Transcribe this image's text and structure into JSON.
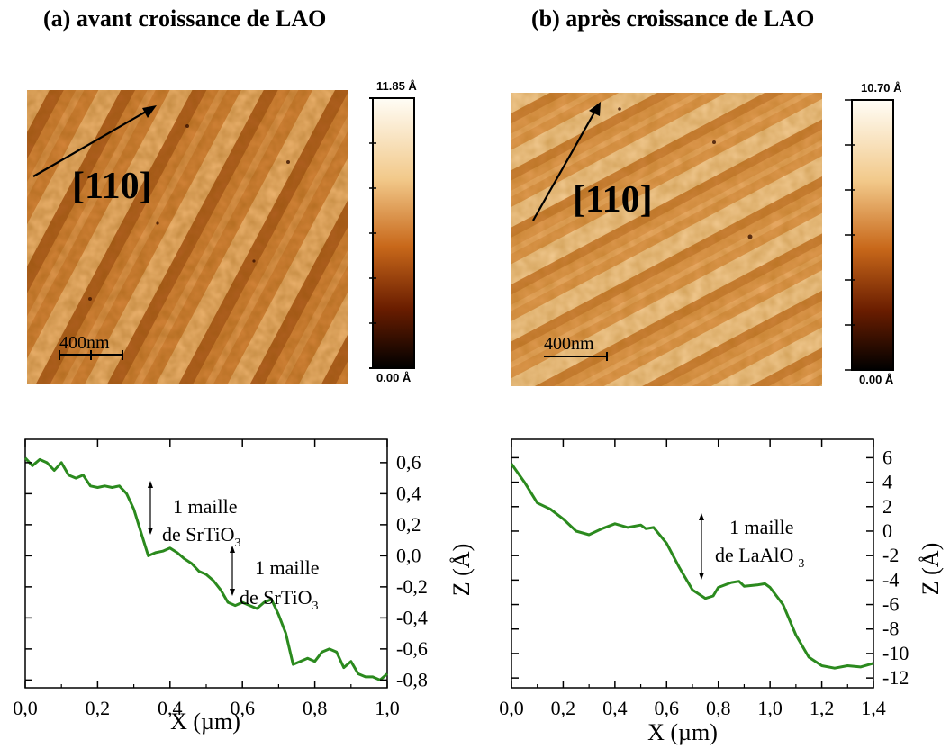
{
  "panels": [
    {
      "title": "(a) avant croissance de LAO",
      "afm": {
        "direction_label": "[110]",
        "scale_bar_label": "400nm",
        "colorbar_max": "11.85 Å",
        "colorbar_min": "0.00 Å"
      },
      "profile_annotations": [
        {
          "line1": "1 maille",
          "line2": "de SrTiO",
          "sub": "3"
        },
        {
          "line1": "1 maille",
          "line2": "de SrTiO",
          "sub": "3"
        }
      ]
    },
    {
      "title": "(b) après croissance de LAO",
      "afm": {
        "direction_label": "[110]",
        "scale_bar_label": "400nm",
        "colorbar_max": "10.70 Å",
        "colorbar_min": "0.00 Å"
      },
      "profile_annotations": [
        {
          "line1": "1 maille",
          "line2": "de LaAlO",
          "sub": "3"
        }
      ]
    }
  ],
  "colors": {
    "profile_line": "#2b8a1e",
    "afm_dark": "#3a0d00",
    "afm_mid": "#c8681a",
    "afm_light": "#fbe7b8",
    "colorbar_top": "#fffdf6",
    "colorbar_bottom": "#000000"
  },
  "chart_data": [
    {
      "type": "line",
      "xlabel": "X (µm)",
      "ylabel": "Z (Å)",
      "xlim": [
        0,
        1.0
      ],
      "ylim": [
        -0.85,
        0.75
      ],
      "xticks": [
        "0,0",
        "0,2",
        "0,4",
        "0,6",
        "0,8",
        "1,0"
      ],
      "yticks": [
        "0,6",
        "0,4",
        "0,2",
        "0,0",
        "-0,2",
        "-0,4",
        "-0,6",
        "-0,8"
      ],
      "x": [
        0,
        0.02,
        0.04,
        0.06,
        0.08,
        0.1,
        0.12,
        0.14,
        0.16,
        0.18,
        0.2,
        0.22,
        0.24,
        0.26,
        0.28,
        0.3,
        0.32,
        0.34,
        0.36,
        0.38,
        0.4,
        0.42,
        0.44,
        0.46,
        0.48,
        0.5,
        0.52,
        0.54,
        0.56,
        0.58,
        0.6,
        0.62,
        0.64,
        0.66,
        0.68,
        0.7,
        0.72,
        0.74,
        0.76,
        0.78,
        0.8,
        0.82,
        0.84,
        0.86,
        0.88,
        0.9,
        0.92,
        0.94,
        0.96,
        0.98,
        1.0
      ],
      "y": [
        0.63,
        0.58,
        0.62,
        0.6,
        0.55,
        0.6,
        0.52,
        0.5,
        0.52,
        0.45,
        0.44,
        0.45,
        0.44,
        0.45,
        0.4,
        0.3,
        0.15,
        0.0,
        0.02,
        0.03,
        0.05,
        0.02,
        -0.02,
        -0.05,
        -0.1,
        -0.12,
        -0.16,
        -0.22,
        -0.3,
        -0.32,
        -0.3,
        -0.32,
        -0.34,
        -0.3,
        -0.28,
        -0.38,
        -0.5,
        -0.7,
        -0.68,
        -0.66,
        -0.68,
        -0.62,
        -0.6,
        -0.62,
        -0.72,
        -0.68,
        -0.76,
        -0.78,
        -0.78,
        -0.8,
        -0.76
      ]
    },
    {
      "type": "line",
      "xlabel": "X (µm)",
      "ylabel": "Z (Å)",
      "xlim": [
        0,
        1.4
      ],
      "ylim": [
        -12.8,
        7.5
      ],
      "xticks": [
        "0,0",
        "0,2",
        "0,4",
        "0,6",
        "0,8",
        "1,0",
        "1,2",
        "1,4"
      ],
      "yticks": [
        "6",
        "4",
        "2",
        "0",
        "-2",
        "-4",
        "-6",
        "-8",
        "-10",
        "-12"
      ],
      "x": [
        0,
        0.05,
        0.1,
        0.15,
        0.2,
        0.25,
        0.3,
        0.35,
        0.4,
        0.45,
        0.5,
        0.52,
        0.55,
        0.6,
        0.65,
        0.7,
        0.75,
        0.78,
        0.8,
        0.85,
        0.88,
        0.9,
        0.95,
        0.98,
        1.0,
        1.05,
        1.1,
        1.15,
        1.2,
        1.25,
        1.3,
        1.35,
        1.4
      ],
      "y": [
        5.5,
        4,
        2.3,
        1.8,
        1,
        0,
        -0.3,
        0.2,
        0.6,
        0.3,
        0.5,
        0.2,
        0.3,
        -1,
        -3,
        -4.8,
        -5.5,
        -5.3,
        -4.6,
        -4.2,
        -4.1,
        -4.5,
        -4.4,
        -4.3,
        -4.6,
        -6,
        -8.5,
        -10.3,
        -11,
        -11.2,
        -11,
        -11.1,
        -10.8
      ]
    }
  ]
}
